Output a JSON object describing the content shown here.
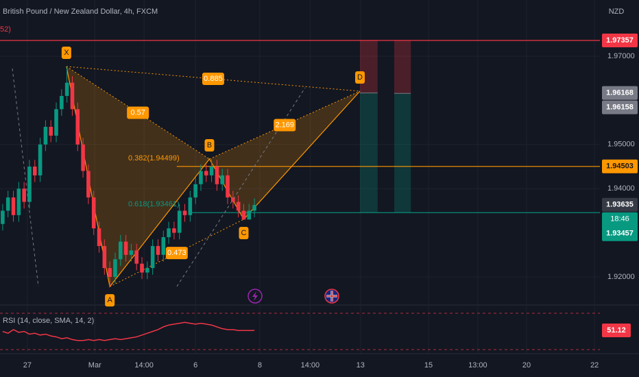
{
  "chart_data": {
    "type": "candlestick",
    "title": "British Pound / New Zealand Dollar, 4h, FXCM",
    "indicator_tag": "52)",
    "ylabel": "NZD",
    "ylim": [
      1.91441,
      1.98273
    ],
    "yticks": [
      {
        "value": 1.92,
        "label": "1.92000"
      },
      {
        "value": 1.94,
        "label": "1.94000"
      },
      {
        "value": 1.95,
        "label": "1.95000"
      },
      {
        "value": 1.97,
        "label": "1.97000"
      }
    ],
    "xlim": [
      0,
      112
    ],
    "xticks": [
      {
        "value": 5.1,
        "label": "27"
      },
      {
        "value": 17.7,
        "label": "Mar"
      },
      {
        "value": 26.9,
        "label": "14:00"
      },
      {
        "value": 36.5,
        "label": "6"
      },
      {
        "value": 48.5,
        "label": "8"
      },
      {
        "value": 57.9,
        "label": "14:00"
      },
      {
        "value": 67.3,
        "label": "13"
      },
      {
        "value": 80,
        "label": "15"
      },
      {
        "value": 89.2,
        "label": "13:00"
      },
      {
        "value": 98.3,
        "label": "20"
      },
      {
        "value": 111,
        "label": "22"
      }
    ],
    "up_color": "#089981",
    "down_color": "#f23645",
    "grid": true,
    "ohlc": {
      "open": [
        1.932,
        1.935,
        1.938,
        1.934,
        1.94,
        1.937,
        1.945,
        1.943,
        1.95,
        1.954,
        1.952,
        1.958,
        1.961,
        1.964,
        1.958,
        1.95,
        1.944,
        1.938,
        1.931,
        1.927,
        1.922,
        1.92,
        1.924,
        1.928,
        1.925,
        1.926,
        1.923,
        1.921,
        1.922,
        1.927,
        1.925,
        1.929,
        1.931,
        1.93,
        1.935,
        1.934,
        1.938,
        1.941,
        1.944,
        1.943,
        1.945,
        1.941,
        1.943,
        1.938,
        1.937,
        1.935,
        1.933,
        1.935
      ],
      "high": [
        1.9365,
        1.9395,
        1.9395,
        1.9415,
        1.9415,
        1.9465,
        1.9465,
        1.9515,
        1.9555,
        1.9555,
        1.9595,
        1.9625,
        1.9677,
        1.9655,
        1.9595,
        1.9515,
        1.9455,
        1.9395,
        1.9325,
        1.9285,
        1.9235,
        1.9255,
        1.9295,
        1.9295,
        1.9275,
        1.9275,
        1.9245,
        1.9235,
        1.9285,
        1.9285,
        1.9305,
        1.9325,
        1.9325,
        1.9365,
        1.9365,
        1.9395,
        1.9425,
        1.9455,
        1.9455,
        1.9467,
        1.9465,
        1.9445,
        1.9445,
        1.9395,
        1.9385,
        1.9365,
        1.9365,
        1.9378
      ],
      "low": [
        1.9305,
        1.9335,
        1.9325,
        1.9325,
        1.9355,
        1.9355,
        1.9415,
        1.9415,
        1.9485,
        1.9505,
        1.9505,
        1.9565,
        1.9595,
        1.9565,
        1.9485,
        1.9425,
        1.9365,
        1.9295,
        1.9255,
        1.9205,
        1.9178,
        1.9185,
        1.9225,
        1.9235,
        1.9235,
        1.9215,
        1.9195,
        1.9195,
        1.9205,
        1.9235,
        1.9235,
        1.9275,
        1.9285,
        1.9285,
        1.9325,
        1.9325,
        1.9365,
        1.9395,
        1.9415,
        1.9415,
        1.9395,
        1.9395,
        1.9365,
        1.9355,
        1.9335,
        1.93304,
        1.9331,
        1.9335
      ],
      "close": [
        1.935,
        1.938,
        1.934,
        1.94,
        1.937,
        1.945,
        1.943,
        1.95,
        1.954,
        1.952,
        1.958,
        1.961,
        1.964,
        1.958,
        1.95,
        1.944,
        1.938,
        1.931,
        1.927,
        1.922,
        1.92,
        1.924,
        1.928,
        1.925,
        1.926,
        1.923,
        1.921,
        1.922,
        1.927,
        1.925,
        1.929,
        1.931,
        1.93,
        1.935,
        1.934,
        1.938,
        1.941,
        1.944,
        1.943,
        1.945,
        1.941,
        1.943,
        1.938,
        1.937,
        1.935,
        1.933,
        1.935,
        1.9363
      ]
    },
    "pattern": {
      "color": "#ff9800",
      "points": [
        {
          "label": "X",
          "x": 12.4,
          "value": 1.96767
        },
        {
          "label": "A",
          "x": 20.5,
          "value": 1.9178
        },
        {
          "label": "B",
          "x": 39.1,
          "value": 1.94671
        },
        {
          "label": "C",
          "x": 45.5,
          "value": 1.93304
        },
        {
          "label": "D",
          "x": 67.2,
          "value": 1.96208
        }
      ],
      "ratios": [
        0.885,
        0.57,
        2.169,
        0.473
      ]
    },
    "fib_levels": [
      {
        "label": "0.382(1.94499)",
        "value": 1.94499
      },
      {
        "label": "0.618(1.93461)",
        "value": 1.93461
      }
    ],
    "levels": [
      {
        "value": 1.97357,
        "color": "#f23645",
        "x": 0
      },
      {
        "value": 1.94503,
        "color": "#ff9800",
        "x": 33
      },
      {
        "value": 1.93457,
        "color": "#089981",
        "x": 35.3
      }
    ],
    "positions": [
      {
        "x": [
          67.2,
          70.5
        ],
        "stop": 1.97357,
        "entry": 1.96168,
        "target": 1.93457
      },
      {
        "x": [
          73.6,
          76.7
        ],
        "stop": 1.97357,
        "entry": 1.96158,
        "target": 1.93457
      }
    ],
    "price_labels": [
      {
        "value": 1.97357,
        "color": "#f23645"
      },
      {
        "value": 1.96168,
        "color": "#787b86"
      },
      {
        "value": 1.96158,
        "color": "#787b86"
      },
      {
        "value": 1.94503,
        "color": "#ff9800"
      },
      {
        "value": 1.93635,
        "color": "#363a45"
      },
      {
        "value": 1.93457,
        "color": "#089981"
      }
    ],
    "countdown": "18:46",
    "rsi": {
      "label": "RSI (14, close, SMA, 14, 2)",
      "ylim": [
        20,
        80
      ],
      "bands": [
        70,
        30
      ],
      "color": "#f23645",
      "last": 51.12,
      "values": [
        50,
        48,
        52,
        49,
        50,
        47,
        48,
        46,
        47,
        45,
        44,
        42,
        43,
        41,
        40,
        40,
        41,
        40,
        41,
        40,
        41,
        42,
        41,
        42,
        43,
        44,
        46,
        48,
        50,
        52,
        55,
        57,
        58,
        59,
        60,
        59,
        58,
        59,
        58,
        57,
        55,
        53,
        52,
        52,
        51,
        51,
        51,
        51.12
      ]
    }
  }
}
